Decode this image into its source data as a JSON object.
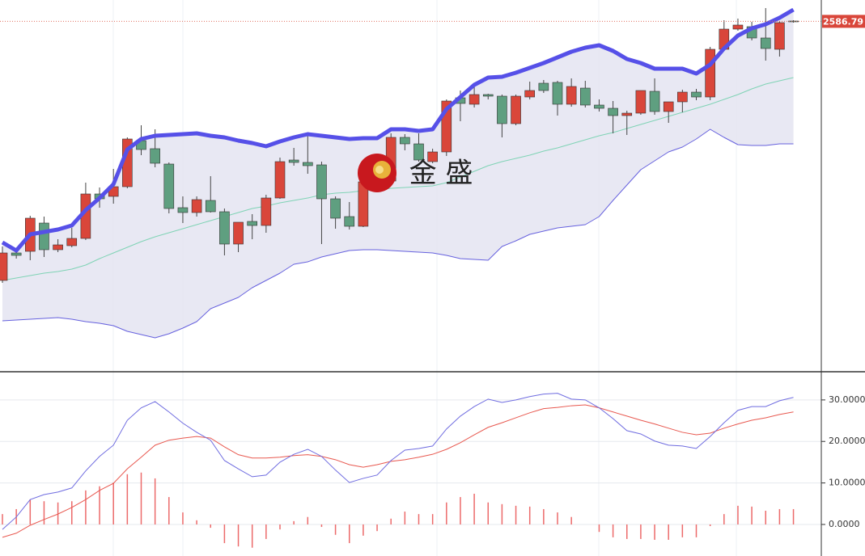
{
  "watermark": "金 盛",
  "chart_data": [
    {
      "type": "candlestick",
      "open": [
        2426.5,
        2443.5,
        2444.5,
        2462,
        2445.5,
        2448,
        2452.5,
        2480,
        2478.5,
        2484.5,
        2513,
        2508,
        2498.5,
        2471.5,
        2468.5,
        2476,
        2469,
        2449,
        2463,
        2460.5,
        2477.5,
        2501,
        2499.5,
        2498,
        2477,
        2466,
        2460,
        2487.5,
        2488,
        2515,
        2511,
        2500,
        2506,
        2539.5,
        2535.5,
        2541.5,
        2540.5,
        2523.5,
        2540,
        2548.5,
        2549,
        2535.5,
        2545.5,
        2535,
        2533,
        2528.5,
        2530,
        2543.5,
        2531,
        2537,
        2543,
        2540,
        2569.5,
        2582,
        2583.5,
        2576.5,
        2569.5,
        2587
      ],
      "high": [
        2447.5,
        2446,
        2466.5,
        2466,
        2452,
        2459,
        2487,
        2484,
        2495.5,
        2515,
        2522.5,
        2520,
        2499.5,
        2478.5,
        2478.5,
        2491,
        2471,
        2462.5,
        2467.5,
        2479.5,
        2502.5,
        2508.5,
        2517.5,
        2500,
        2478.5,
        2475,
        2489,
        2502.5,
        2517.5,
        2517,
        2517.5,
        2508,
        2538.5,
        2544,
        2547.5,
        2542,
        2541.5,
        2541.5,
        2549.5,
        2550.5,
        2550,
        2551.5,
        2550,
        2538.5,
        2537.5,
        2531.5,
        2544,
        2551.5,
        2537,
        2544.5,
        2545,
        2571,
        2587.5,
        2588.5,
        2586.5,
        2595,
        2587,
        2587.5
      ],
      "low": [
        2425,
        2440,
        2439,
        2441,
        2444,
        2447,
        2451.5,
        2471.5,
        2474,
        2483.5,
        2504,
        2496.5,
        2468,
        2462,
        2466,
        2468.5,
        2442,
        2444,
        2452,
        2456,
        2477,
        2497.5,
        2492.5,
        2449,
        2458.5,
        2458,
        2459.5,
        2486,
        2487,
        2507,
        2500,
        2499,
        2503.5,
        2525,
        2533.5,
        2538.5,
        2515,
        2522.5,
        2538.5,
        2542.5,
        2528.5,
        2534,
        2533.5,
        2531,
        2517.5,
        2516.5,
        2529,
        2529,
        2524,
        2530.5,
        2538,
        2538,
        2569,
        2581,
        2575,
        2562.5,
        2565,
        2586
      ],
      "close": [
        2443.5,
        2442,
        2465,
        2445.5,
        2448.5,
        2452.5,
        2480,
        2477,
        2484.5,
        2514,
        2507.5,
        2499,
        2471,
        2468.5,
        2476.5,
        2469,
        2449,
        2462.5,
        2460.5,
        2477.5,
        2500,
        2499.5,
        2497.5,
        2477,
        2465,
        2460,
        2487.5,
        2500,
        2515,
        2511,
        2501,
        2506,
        2537.5,
        2536,
        2541.5,
        2540.5,
        2523.5,
        2540.5,
        2544,
        2544,
        2535.5,
        2546.5,
        2535,
        2533,
        2528.5,
        2530,
        2544,
        2531,
        2537,
        2543,
        2540,
        2569.5,
        2582,
        2584.5,
        2576.5,
        2570,
        2586,
        2586.79
      ],
      "up_color": "#d9463a",
      "down_color": "#5f9f80",
      "bands": {
        "upper": [
          2450,
          2445,
          2455,
          2456.5,
          2458,
          2460.5,
          2470,
          2477.5,
          2486,
          2507.5,
          2514,
          2516,
          2516.5,
          2517,
          2517.5,
          2516,
          2515,
          2513,
          2511.5,
          2509.5,
          2512.5,
          2515,
          2517,
          2516,
          2515,
          2514,
          2514.5,
          2514.5,
          2520,
          2520,
          2519,
          2520,
          2532.5,
          2540,
          2547.5,
          2552,
          2552.5,
          2555,
          2558,
          2561,
          2564.5,
          2568,
          2570.5,
          2572,
          2568.5,
          2563.5,
          2561,
          2557.5,
          2557.5,
          2557.5,
          2554.5,
          2560,
          2570,
          2578,
          2582.5,
          2585,
          2589,
          2594
        ],
        "middle": [
          2426.5,
          2428,
          2429.5,
          2431,
          2432,
          2433.5,
          2436,
          2440,
          2443.5,
          2447,
          2450.5,
          2453.5,
          2456,
          2458.5,
          2461,
          2463.5,
          2466,
          2468.5,
          2471,
          2472.5,
          2474.5,
          2476,
          2477.5,
          2479.5,
          2480.5,
          2481,
          2482,
          2482.5,
          2483.5,
          2484,
          2484.5,
          2485,
          2487,
          2490.5,
          2494,
          2497.5,
          2500,
          2502,
          2504,
          2506.5,
          2508.5,
          2511,
          2513.5,
          2516,
          2518,
          2520.5,
          2523,
          2525.5,
          2528,
          2530.5,
          2533,
          2535.5,
          2538.5,
          2541.5,
          2545,
          2548,
          2550,
          2552
        ],
        "lower": [
          2401.5,
          2402,
          2402.5,
          2403,
          2403.5,
          2402.5,
          2401,
          2400,
          2398.5,
          2395,
          2393,
          2391,
          2393.5,
          2397,
          2401,
          2409,
          2412.5,
          2416,
          2422,
          2426.5,
          2431,
          2436.5,
          2438,
          2441,
          2443,
          2445,
          2445.5,
          2445.5,
          2445,
          2444.5,
          2444,
          2443.5,
          2442,
          2440,
          2439.5,
          2439,
          2447.5,
          2451,
          2455,
          2457,
          2459,
          2460,
          2461,
          2466,
          2476,
          2485.5,
          2495,
          2500.5,
          2506,
          2509,
          2514,
          2520,
          2515,
          2510.5,
          2510,
          2510,
          2511,
          2511
        ],
        "upper_color": "#5650e8",
        "middle_color": "#7fd3b5",
        "lower_color": "#6661de",
        "fill_color": "#e4e4f1"
      },
      "last_price": 2586.79,
      "ylim": [
        2371,
        2600
      ]
    },
    {
      "type": "macd",
      "dif": [
        -1.2,
        1.8,
        6.0,
        7.2,
        7.8,
        8.8,
        12.9,
        16.4,
        19.1,
        25.1,
        28.1,
        29.6,
        27.1,
        24.4,
        22.2,
        20.3,
        15.4,
        13.4,
        11.5,
        11.9,
        15.0,
        16.9,
        18.1,
        16.4,
        13.1,
        10.1,
        11.1,
        11.9,
        15.4,
        17.9,
        18.3,
        18.9,
        23.0,
        26.1,
        28.4,
        30.2,
        29.4,
        30.0,
        30.8,
        31.4,
        31.6,
        30.2,
        30.0,
        28.1,
        25.5,
        22.6,
        21.8,
        20.1,
        19.1,
        18.9,
        18.3,
        21.2,
        24.5,
        27.5,
        28.4,
        28.4,
        29.8,
        30.6
      ],
      "dea": [
        -3.1,
        -2.1,
        -0.2,
        1.2,
        2.5,
        4.1,
        6.0,
        8.2,
        9.9,
        13.4,
        16.2,
        19.1,
        20.3,
        20.8,
        21.2,
        20.8,
        18.7,
        16.8,
        16.0,
        16.0,
        16.2,
        16.6,
        16.8,
        16.4,
        15.6,
        14.4,
        13.8,
        14.4,
        15.2,
        15.6,
        16.2,
        16.9,
        18.1,
        19.7,
        21.6,
        23.4,
        24.5,
        25.7,
        26.9,
        27.9,
        28.2,
        28.6,
        28.8,
        28.1,
        27.1,
        26.1,
        25.1,
        24.2,
        23.2,
        22.2,
        21.6,
        22.0,
        23.2,
        24.2,
        25.1,
        25.7,
        26.5,
        27.1
      ],
      "histogram": [
        2.5,
        3.7,
        6.0,
        5.6,
        5.3,
        5.6,
        8.2,
        9.2,
        10.1,
        12.1,
        12.5,
        11.1,
        6.6,
        2.9,
        1.0,
        -0.8,
        -4.5,
        -5.3,
        -5.6,
        -3.5,
        -1.2,
        0.8,
        1.8,
        -0.6,
        -2.5,
        -4.5,
        -2.7,
        -1.6,
        1.4,
        3.1,
        2.5,
        2.5,
        5.3,
        6.6,
        7.4,
        5.3,
        4.9,
        4.5,
        4.3,
        3.7,
        2.9,
        1.8,
        0,
        -1.8,
        -3.1,
        -3.5,
        -3.5,
        -3.7,
        -3.7,
        -3.1,
        -3.1,
        -0.4,
        2.5,
        4.5,
        4.3,
        3.3,
        3.7,
        3.7
      ],
      "dif_color": "#6f6ce0",
      "dea_color": "#e8584f",
      "histogram_color": "#ec6a6a",
      "ylim": [
        -7.6,
        36.4
      ],
      "yticks": [
        {
          "value": 0,
          "label": "0.0000"
        },
        {
          "value": 10,
          "label": "10.0000"
        },
        {
          "value": 20,
          "label": "20.0000"
        },
        {
          "value": 30,
          "label": "30.0000"
        }
      ],
      "grid": true
    }
  ]
}
